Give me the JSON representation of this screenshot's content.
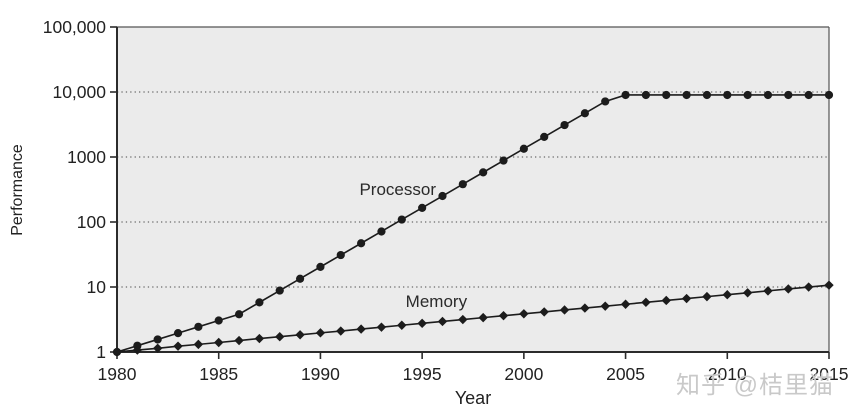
{
  "watermark": "知乎 @桔里猫",
  "colors": {
    "series": "#1c1c1c",
    "plot_bg": "#ebebeb",
    "grid": "#4a4a4a",
    "axis": "#2b2b2b",
    "border": "#555555",
    "tick_text": "#222222",
    "watermark": "#c9c9c9"
  },
  "chart_data": {
    "type": "line",
    "title": "",
    "xlabel": "Year",
    "ylabel": "Performance",
    "y_scale": "log",
    "ylim": [
      1,
      100000
    ],
    "xlim": [
      1980,
      2015
    ],
    "grid": "horizontal-dotted",
    "legend": "inline-labels",
    "x_ticks": [
      1980,
      1985,
      1990,
      1995,
      2000,
      2005,
      2010,
      2015
    ],
    "y_ticks": [
      {
        "value": 1,
        "label": "1"
      },
      {
        "value": 10,
        "label": "10"
      },
      {
        "value": 100,
        "label": "100"
      },
      {
        "value": 1000,
        "label": "1000"
      },
      {
        "value": 10000,
        "label": "10,000"
      },
      {
        "value": 100000,
        "label": "100,000"
      }
    ],
    "x": [
      1980,
      1981,
      1982,
      1983,
      1984,
      1985,
      1986,
      1987,
      1988,
      1989,
      1990,
      1991,
      1992,
      1993,
      1994,
      1995,
      1996,
      1997,
      1998,
      1999,
      2000,
      2001,
      2002,
      2003,
      2004,
      2005,
      2006,
      2007,
      2008,
      2009,
      2010,
      2011,
      2012,
      2013,
      2014,
      2015
    ],
    "series": [
      {
        "name": "Processor",
        "marker": "circle",
        "label_pos": {
          "year": 1993.8,
          "value": 310
        },
        "values": [
          1,
          1.25,
          1.56,
          1.95,
          2.44,
          3.05,
          3.81,
          5.8,
          8.81,
          13.4,
          20.4,
          31.0,
          47.1,
          71.5,
          109,
          165,
          251,
          382,
          580,
          882,
          1341,
          2038,
          3098,
          4709,
          7158,
          9000,
          9000,
          9000,
          9000,
          9000,
          9000,
          9000,
          9000,
          9000,
          9000,
          9000
        ]
      },
      {
        "name": "Memory",
        "marker": "diamond",
        "label_pos": {
          "year": 1995.7,
          "value": 5.9
        },
        "values": [
          1,
          1.07,
          1.14,
          1.23,
          1.31,
          1.4,
          1.5,
          1.61,
          1.72,
          1.84,
          1.97,
          2.1,
          2.25,
          2.41,
          2.58,
          2.76,
          2.95,
          3.16,
          3.38,
          3.62,
          3.87,
          4.14,
          4.43,
          4.74,
          5.07,
          5.43,
          5.81,
          6.21,
          6.65,
          7.11,
          7.61,
          8.15,
          8.72,
          9.33,
          9.98,
          10.68
        ]
      }
    ]
  }
}
